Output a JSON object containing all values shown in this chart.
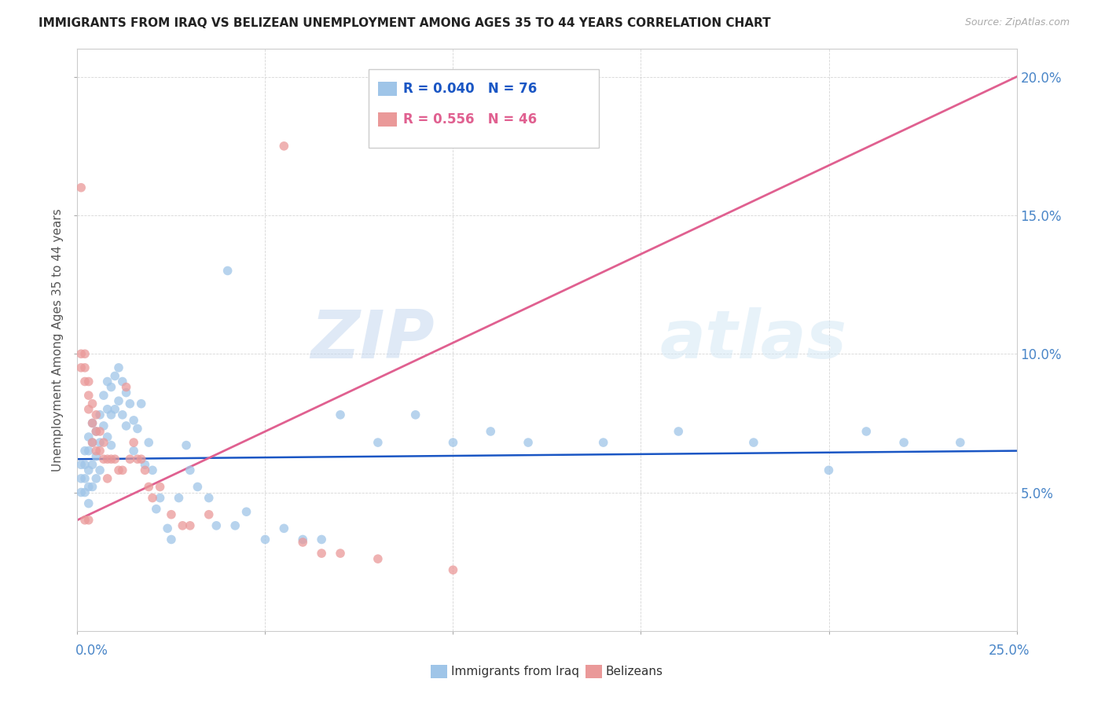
{
  "title": "IMMIGRANTS FROM IRAQ VS BELIZEAN UNEMPLOYMENT AMONG AGES 35 TO 44 YEARS CORRELATION CHART",
  "source": "Source: ZipAtlas.com",
  "ylabel": "Unemployment Among Ages 35 to 44 years",
  "xlim": [
    0.0,
    0.25
  ],
  "ylim": [
    0.0,
    0.21
  ],
  "watermark_zip": "ZIP",
  "watermark_atlas": "atlas",
  "legend_iraq": "Immigrants from Iraq",
  "legend_belize": "Belizeans",
  "r_iraq": "0.040",
  "n_iraq": "76",
  "r_belize": "0.556",
  "n_belize": "46",
  "color_iraq": "#9fc5e8",
  "color_belize": "#ea9999",
  "trendline_iraq": "#1a56c4",
  "trendline_belize": "#e06090",
  "title_fontsize": 11,
  "axis_label_color": "#4a86c8",
  "background_color": "#ffffff"
}
